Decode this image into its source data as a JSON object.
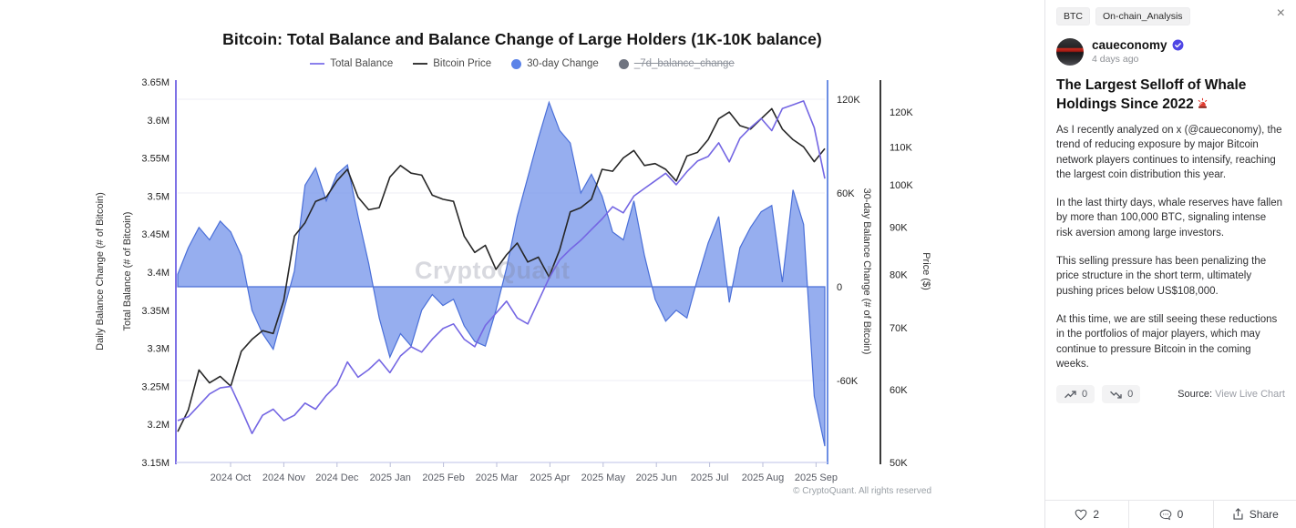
{
  "chart": {
    "title": "Bitcoin: Total Balance and Balance Change of Large Holders (1K-10K balance)",
    "legend": [
      {
        "label": "Total Balance",
        "swatch": "line",
        "color": "#8b80ec",
        "disabled": false
      },
      {
        "label": "Bitcoin Price",
        "swatch": "line",
        "color": "#3a3a3a",
        "disabled": false
      },
      {
        "label": "30-day Change",
        "swatch": "dot",
        "color": "#5b83e8",
        "disabled": false
      },
      {
        "label": "_7d_balance_change",
        "swatch": "dot",
        "color": "#6f7480",
        "disabled": true
      }
    ],
    "watermark": "CryptoQuant",
    "copyright": "© CryptoQuant. All rights reserved",
    "axes": {
      "left_outer_label": "Daily Balance Change (# of Bitcoin)",
      "left_inner_label": "Total Balance (# of Bitcoin)",
      "left_ticks": [
        "3.65M",
        "3.6M",
        "3.55M",
        "3.5M",
        "3.45M",
        "3.4M",
        "3.35M",
        "3.3M",
        "3.25M",
        "3.2M",
        "3.15M"
      ],
      "right_change_label": "30-day Balance Change (# of Bitcoin)",
      "right_change_ticks": [
        {
          "label": "120K",
          "value": 120
        },
        {
          "label": "60K",
          "value": 60
        },
        {
          "label": "0",
          "value": 0
        },
        {
          "label": "-60K",
          "value": -60
        }
      ],
      "right_price_label": "Price ($)",
      "right_price_ticks": [
        {
          "label": "120K",
          "value": 120
        },
        {
          "label": "110K",
          "value": 110
        },
        {
          "label": "100K",
          "value": 100
        },
        {
          "label": "90K",
          "value": 90
        },
        {
          "label": "80K",
          "value": 80
        },
        {
          "label": "70K",
          "value": 70
        },
        {
          "label": "60K",
          "value": 60
        },
        {
          "label": "50K",
          "value": 50
        }
      ],
      "x_ticks": [
        "2024 Oct",
        "2024 Nov",
        "2024 Dec",
        "2025 Jan",
        "2025 Feb",
        "2025 Mar",
        "2025 Apr",
        "2025 May",
        "2025 Jun",
        "2025 Jul",
        "2025 Aug",
        "2025 Sep"
      ]
    }
  },
  "chart_data": {
    "type": "line",
    "x_range": "2024 Sep through 2025 Sep, ~6-day sampling (62 points)",
    "x_tick_labels": [
      "2024 Oct",
      "2024 Nov",
      "2024 Dec",
      "2025 Jan",
      "2025 Feb",
      "2025 Mar",
      "2025 Apr",
      "2025 May",
      "2025 Jun",
      "2025 Jul",
      "2025 Aug",
      "2025 Sep"
    ],
    "series": [
      {
        "name": "Total Balance",
        "axis": "left",
        "unit": "million BTC",
        "style": "line",
        "color": "#7466e3",
        "ylim": [
          3.15,
          3.65
        ],
        "values": [
          3.205,
          3.21,
          3.225,
          3.24,
          3.248,
          3.25,
          3.22,
          3.188,
          3.212,
          3.22,
          3.205,
          3.212,
          3.228,
          3.22,
          3.238,
          3.252,
          3.282,
          3.262,
          3.272,
          3.285,
          3.268,
          3.29,
          3.302,
          3.295,
          3.312,
          3.326,
          3.332,
          3.312,
          3.302,
          3.33,
          3.346,
          3.362,
          3.34,
          3.332,
          3.362,
          3.392,
          3.416,
          3.43,
          3.442,
          3.456,
          3.47,
          3.486,
          3.478,
          3.5,
          3.51,
          3.52,
          3.53,
          3.515,
          3.532,
          3.546,
          3.552,
          3.57,
          3.545,
          3.576,
          3.59,
          3.602,
          3.586,
          3.615,
          3.62,
          3.625,
          3.59,
          3.523
        ]
      },
      {
        "name": "Bitcoin Price",
        "axis": "price",
        "unit": "thousand USD",
        "style": "line",
        "scale": "log",
        "color": "#262626",
        "ylim": [
          50,
          125
        ],
        "values": [
          54,
          57,
          63,
          61,
          62,
          60.5,
          66,
          68,
          69.5,
          69,
          75,
          88,
          91,
          96,
          97,
          101,
          104,
          97,
          94,
          94.5,
          102,
          105,
          103,
          102.5,
          97.5,
          96.5,
          96,
          88,
          84.5,
          86,
          81,
          84,
          86.5,
          82.5,
          83.5,
          79.5,
          85,
          93.5,
          94.5,
          96.5,
          104,
          103.5,
          107,
          109,
          105,
          105.5,
          104,
          101,
          107.5,
          108.5,
          112,
          118,
          120,
          116,
          115,
          118,
          121,
          115,
          112,
          110,
          106,
          109.5
        ]
      },
      {
        "name": "30-day Change",
        "axis": "change",
        "unit": "thousand BTC",
        "style": "area",
        "color": "#4a6fd8",
        "fill": "rgba(109,143,233,0.72)",
        "ylim": [
          -115,
          132
        ],
        "values": [
          8,
          25,
          38,
          30,
          42,
          35,
          20,
          -15,
          -30,
          -40,
          -15,
          10,
          65,
          76,
          55,
          72,
          78,
          45,
          15,
          -20,
          -45,
          -30,
          -38,
          -15,
          -5,
          -12,
          -8,
          -25,
          -35,
          -38,
          -15,
          12,
          45,
          70,
          95,
          118,
          100,
          92,
          60,
          72,
          58,
          35,
          30,
          55,
          20,
          -8,
          -22,
          -15,
          -20,
          5,
          28,
          45,
          -10,
          25,
          38,
          48,
          52,
          3,
          62,
          40,
          -70,
          -102
        ]
      },
      {
        "name": "_7d_balance_change",
        "axis": "change",
        "style": "hidden",
        "color": "#6f7480",
        "values": []
      }
    ],
    "title": "Bitcoin: Total Balance and Balance Change of Large Holders (1K-10K balance)",
    "grid": "horizontal, at 30-day-change axis ticks",
    "legend_position": "top-center"
  },
  "panel": {
    "tags": [
      "BTC",
      "On-chain_Analysis"
    ],
    "close_label": "×",
    "author": "caueconomy",
    "verified": true,
    "time": "4 days ago",
    "title": "The Largest Selloff of Whale Holdings Since 2022",
    "paragraphs": [
      "As I recently analyzed on x (@caueconomy), the trend of reducing exposure by major Bitcoin network players continues to intensify, reaching the largest coin distribution this year.",
      "In the last thirty days, whale reserves have fallen by more than 100,000 BTC, signaling intense risk aversion among large investors.",
      "This selling pressure has been penalizing the price structure in the short term, ultimately pushing prices below US$108,000.",
      "At this time, we are still seeing these reductions in the portfolios of major players, which may continue to pressure Bitcoin in the coming weeks."
    ],
    "upvote_count": "0",
    "downvote_count": "0",
    "source_label": "Source:",
    "source_link": "View Live Chart",
    "like_count": "2",
    "comment_count": "0",
    "share_label": "Share"
  }
}
